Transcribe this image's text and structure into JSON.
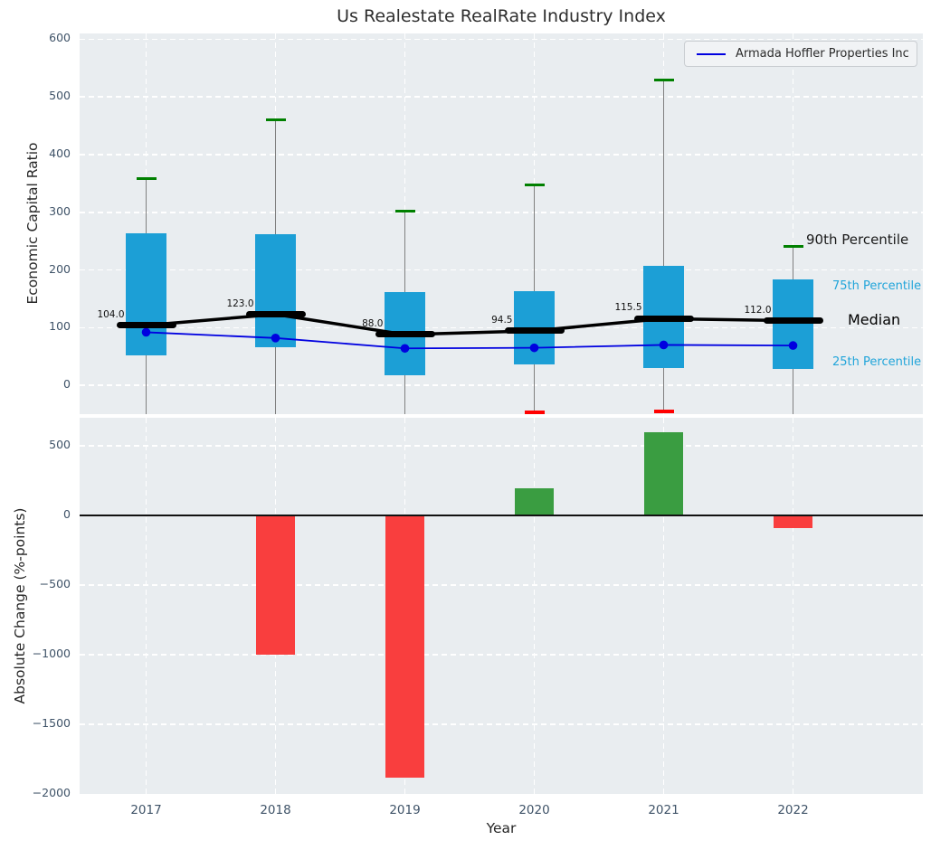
{
  "title": "Us Realestate RealRate Industry Index",
  "axes": {
    "top": {
      "ylabel": "Economic Capital Ratio"
    },
    "bottom": {
      "ylabel": "Absolute Change (%-points)",
      "xlabel": "Year"
    }
  },
  "legend": {
    "label": "Armada Hoffler Properties Inc",
    "position": "upper right"
  },
  "annotations": {
    "p90": "90th Percentile",
    "p75": "75th Percentile",
    "median": "Median",
    "p25": "25th Percentile"
  },
  "colors": {
    "box_fill": "#1c9fd6",
    "median_line": "#000000",
    "company_line": "#0000e0",
    "cap_high": "#008000",
    "cap_low": "#ff0000",
    "whisker": "#808080",
    "bar_positive": "#3a9d41",
    "bar_negative": "#f93e3e",
    "plot_bg": "#e9edf0",
    "grid": "#ffffff",
    "tick_text": "#3f5368",
    "percentile_text": "#22a5da"
  },
  "chart_data": [
    {
      "type": "box",
      "subplot": "top",
      "ylabel": "Economic Capital Ratio",
      "categories": [
        "2017",
        "2018",
        "2019",
        "2020",
        "2021",
        "2022"
      ],
      "ylim": [
        -50,
        610
      ],
      "yticks": [
        0,
        100,
        200,
        300,
        400,
        500,
        600
      ],
      "grid": true,
      "legend_position": "upper right",
      "boxes": [
        {
          "year": "2017",
          "whisker_high": 358,
          "q3": 264,
          "median": 104.0,
          "q1": 52,
          "whisker_low": null,
          "median_label": "104.0"
        },
        {
          "year": "2018",
          "whisker_high": 460,
          "q3": 262,
          "median": 123.0,
          "q1": 66,
          "whisker_low": null,
          "median_label": "123.0"
        },
        {
          "year": "2019",
          "whisker_high": 302,
          "q3": 162,
          "median": 88.0,
          "q1": 18,
          "whisker_low": null,
          "median_label": "88.0"
        },
        {
          "year": "2020",
          "whisker_high": 347,
          "q3": 163,
          "median": 94.5,
          "q1": 36,
          "whisker_low": -47,
          "median_label": "94.5"
        },
        {
          "year": "2021",
          "whisker_high": 529,
          "q3": 207,
          "median": 115.5,
          "q1": 30,
          "whisker_low": -45,
          "median_label": "115.5"
        },
        {
          "year": "2022",
          "whisker_high": 241,
          "q3": 184,
          "median": 112.0,
          "q1": 28,
          "whisker_low": null,
          "median_label": "112.0"
        }
      ],
      "series": [
        {
          "name": "Armada Hoffler Properties Inc",
          "values": [
            92,
            82,
            64,
            65,
            70,
            69
          ]
        }
      ]
    },
    {
      "type": "bar",
      "subplot": "bottom",
      "ylabel": "Absolute Change (%-points)",
      "xlabel": "Year",
      "categories": [
        "2017",
        "2018",
        "2019",
        "2020",
        "2021",
        "2022"
      ],
      "values": [
        0,
        -1000,
        -1880,
        195,
        595,
        -90
      ],
      "ylim": [
        -2000,
        700
      ],
      "yticks": [
        500,
        0,
        -500,
        -1000,
        -1500,
        -2000
      ],
      "ytick_labels": [
        "500",
        "0",
        "−500",
        "−1000",
        "−1500",
        "−2000"
      ],
      "grid": true
    }
  ]
}
